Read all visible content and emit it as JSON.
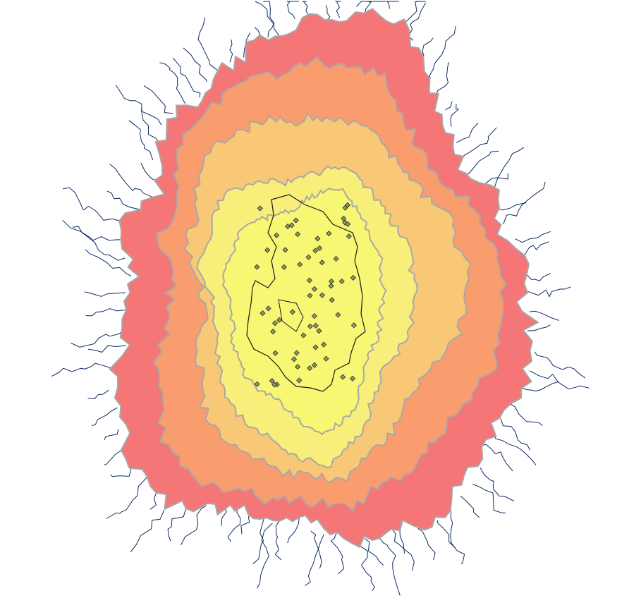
{
  "map": {
    "title": "",
    "zone_colors": [
      "#f57676",
      "#f99c6e",
      "#f8c876",
      "#f8ee7a",
      "#f7f773"
    ],
    "zone_outline_color": "#a8a8a8",
    "network_color": "#0b2a63",
    "boundary_color": "#1a1a1a",
    "site_fill": "#8c9a5a",
    "site_stroke": "#2b2b2b",
    "sites_count": 62
  }
}
